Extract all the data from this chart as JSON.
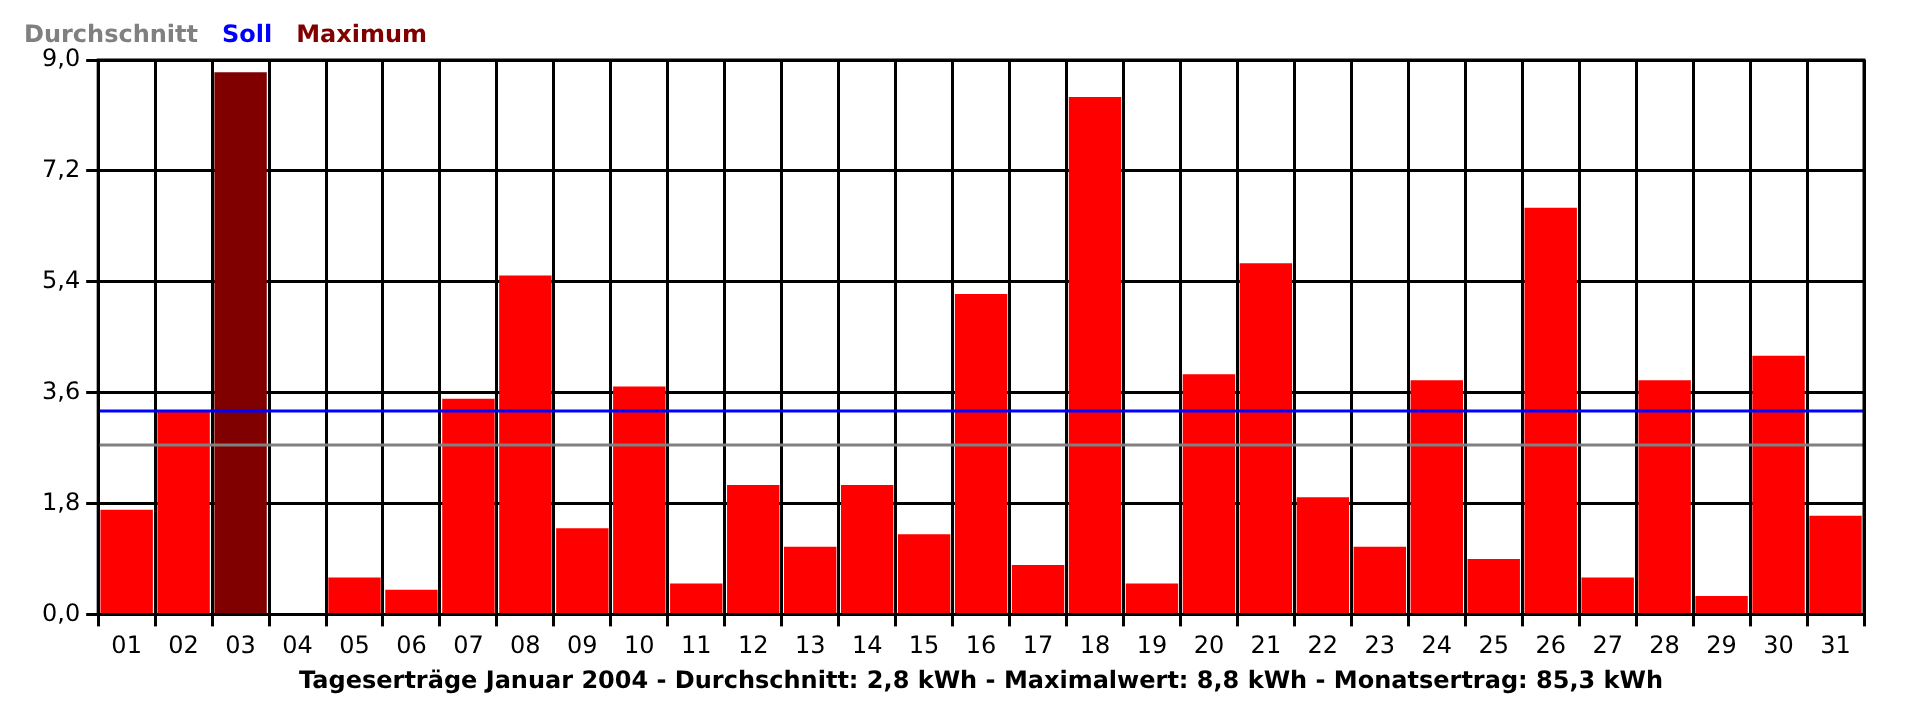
{
  "chart_data": {
    "type": "bar",
    "xlabel": "Tageserträge Januar 2004 - Durchschnitt: 2,8 kWh - Maximalwert: 8,8 kWh - Monatsertrag: 85,3 kWh",
    "categories": [
      "01",
      "02",
      "03",
      "04",
      "05",
      "06",
      "07",
      "08",
      "09",
      "10",
      "11",
      "12",
      "13",
      "14",
      "15",
      "16",
      "17",
      "18",
      "19",
      "20",
      "21",
      "22",
      "23",
      "24",
      "25",
      "26",
      "27",
      "28",
      "29",
      "30",
      "31"
    ],
    "stacked": true,
    "series": [
      {
        "color": "#ff0000",
        "values": [
          1.7,
          3.3,
          null,
          0,
          0.6,
          0.4,
          3.5,
          5.5,
          1.4,
          3.7,
          0.5,
          2.1,
          1.1,
          2.1,
          1.3,
          5.2,
          0.8,
          8.4,
          0.5,
          3.9,
          5.7,
          1.9,
          1.1,
          3.8,
          0.9,
          6.6,
          0.6,
          3.8,
          0.3,
          4.2,
          1.6
        ]
      },
      {
        "name": "Maximum",
        "color": "#800000",
        "values": [
          null,
          null,
          8.8,
          null,
          null,
          null,
          null,
          null,
          null,
          null,
          null,
          null,
          null,
          null,
          null,
          null,
          null,
          null,
          null,
          null,
          null,
          null,
          null,
          null,
          null,
          null,
          null,
          null,
          null,
          null,
          null
        ]
      }
    ],
    "ref_lines": [
      {
        "axis": "y",
        "value": 2.75,
        "label": "Durchschnitt",
        "color": "#808080"
      },
      {
        "axis": "y",
        "value": 3.3,
        "label": "Soll",
        "color": "#0000ff"
      }
    ],
    "ylim": [
      0,
      9
    ],
    "yticks": [
      {
        "value": 0,
        "label": "0,0"
      },
      {
        "value": 1.8,
        "label": "1,8"
      },
      {
        "value": 3.6,
        "label": "3,6"
      },
      {
        "value": 5.4,
        "label": "5,4"
      },
      {
        "value": 7.2,
        "label": "7,2"
      },
      {
        "value": 9,
        "label": "9,0"
      }
    ],
    "grid": true,
    "legend": "top left"
  }
}
